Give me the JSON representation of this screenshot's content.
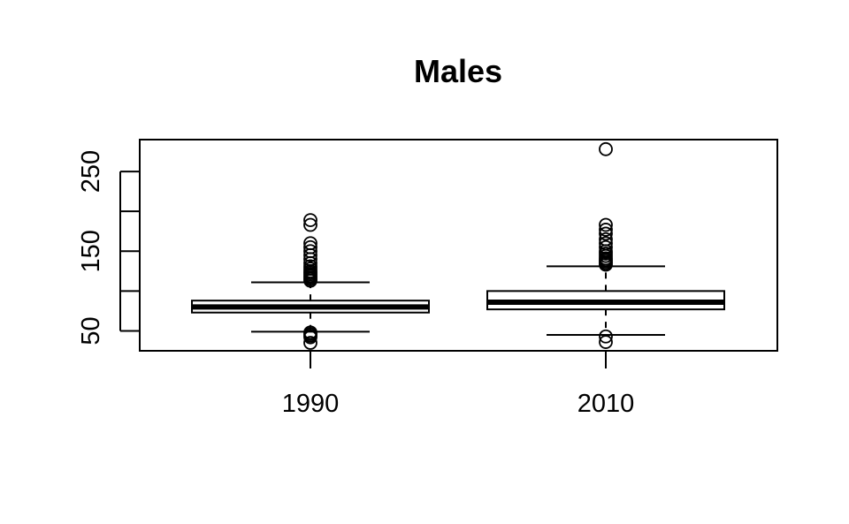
{
  "chart_data": {
    "type": "boxplot",
    "title": "Males",
    "xlabel": "",
    "ylabel": "",
    "categories": [
      "1990",
      "2010"
    ],
    "ylim": [
      25,
      290
    ],
    "yticks": [
      50,
      100,
      150,
      200,
      250
    ],
    "ytick_labels": [
      "50",
      "",
      "150",
      "",
      "250"
    ],
    "grid": false,
    "boxes": [
      {
        "category": "1990",
        "whisker_low": 49,
        "q1": 73,
        "median": 80,
        "q3": 88,
        "whisker_high": 111,
        "outliers_low": [
          35,
          42,
          44,
          46,
          48
        ],
        "outliers_high": [
          113,
          115,
          117,
          119,
          121,
          123,
          125,
          128,
          131,
          135,
          140,
          145,
          150,
          155,
          160,
          183,
          189
        ]
      },
      {
        "category": "2010",
        "whisker_low": 45,
        "q1": 77,
        "median": 86,
        "q3": 100,
        "whisker_high": 131,
        "outliers_low": [
          36,
          43
        ],
        "outliers_high": [
          133,
          135,
          137,
          139,
          141,
          144,
          147,
          150,
          155,
          160,
          165,
          172,
          177,
          183,
          278
        ]
      }
    ]
  }
}
